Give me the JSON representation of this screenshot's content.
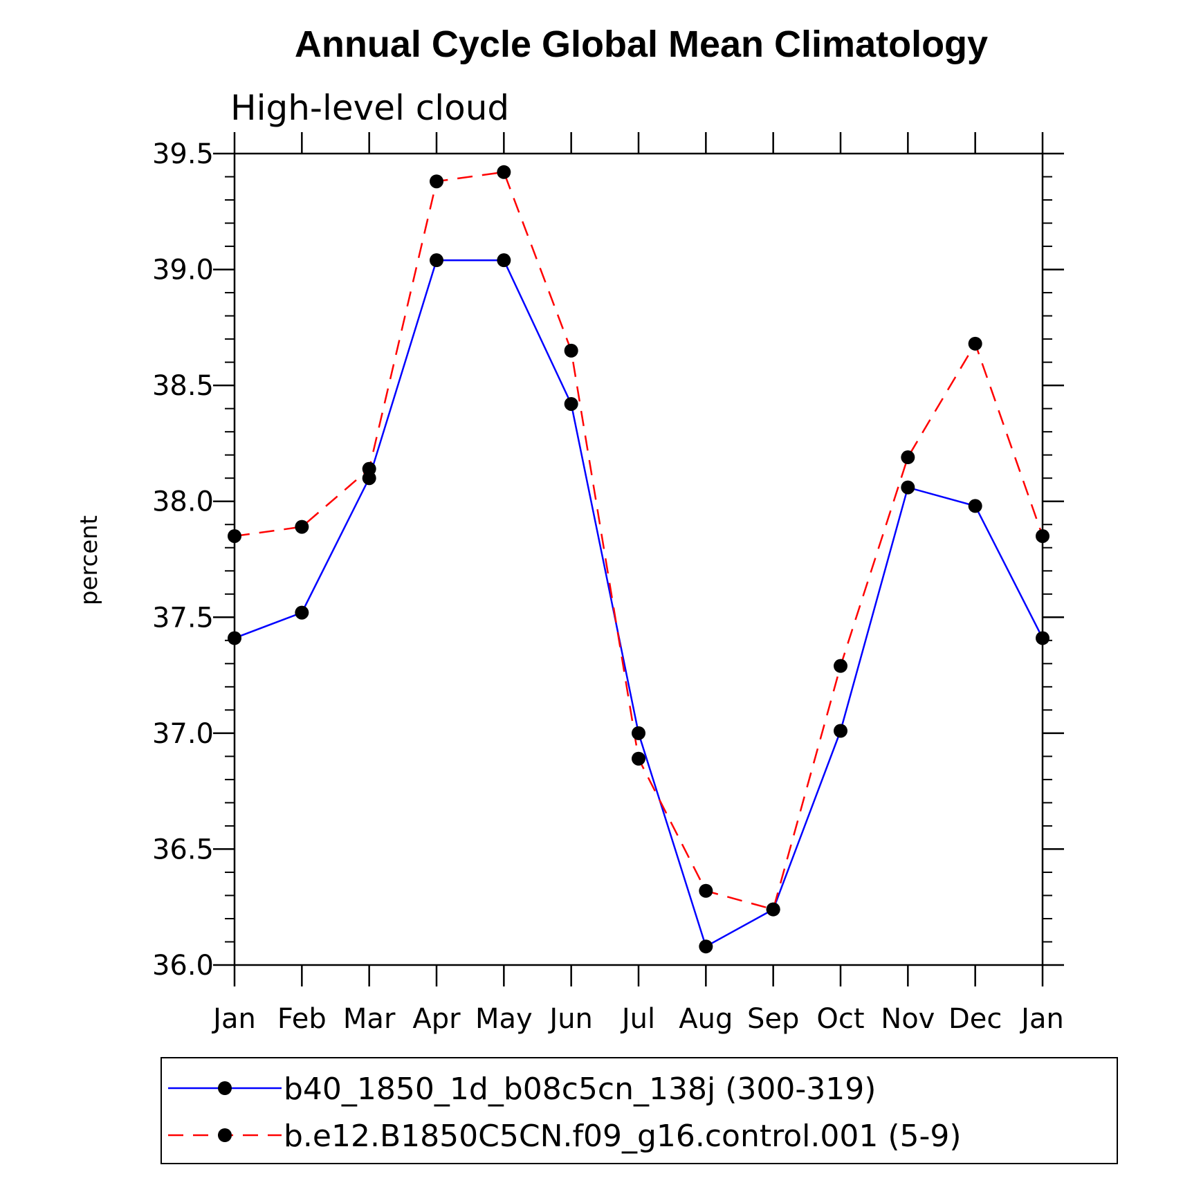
{
  "chart_data": {
    "type": "line",
    "title": "Annual Cycle Global Mean Climatology",
    "subtitle": "High-level cloud",
    "xlabel": "",
    "ylabel": "percent",
    "categories": [
      "Jan",
      "Feb",
      "Mar",
      "Apr",
      "May",
      "Jun",
      "Jul",
      "Aug",
      "Sep",
      "Oct",
      "Nov",
      "Dec",
      "Jan"
    ],
    "ylim": [
      36.0,
      39.5
    ],
    "yticks": [
      "36.0",
      "36.5",
      "37.0",
      "37.5",
      "38.0",
      "38.5",
      "39.0",
      "39.5"
    ],
    "grid": false,
    "legend_position": "bottom",
    "series": [
      {
        "name": "b40_1850_1d_b08c5cn_138j (300-319)",
        "color": "#0000ff",
        "line_style": "solid",
        "marker": "filled-circle",
        "values": [
          37.41,
          37.52,
          38.1,
          39.04,
          39.04,
          38.42,
          37.0,
          36.08,
          36.24,
          37.01,
          38.06,
          37.98,
          37.41
        ]
      },
      {
        "name": "b.e12.B1850C5CN.f09_g16.control.001 (5-9)",
        "color": "#ff0000",
        "line_style": "dashed",
        "marker": "filled-circle",
        "values": [
          37.85,
          37.89,
          38.14,
          39.38,
          39.42,
          38.65,
          36.89,
          36.32,
          36.24,
          37.29,
          38.19,
          38.68,
          37.85
        ]
      }
    ]
  }
}
